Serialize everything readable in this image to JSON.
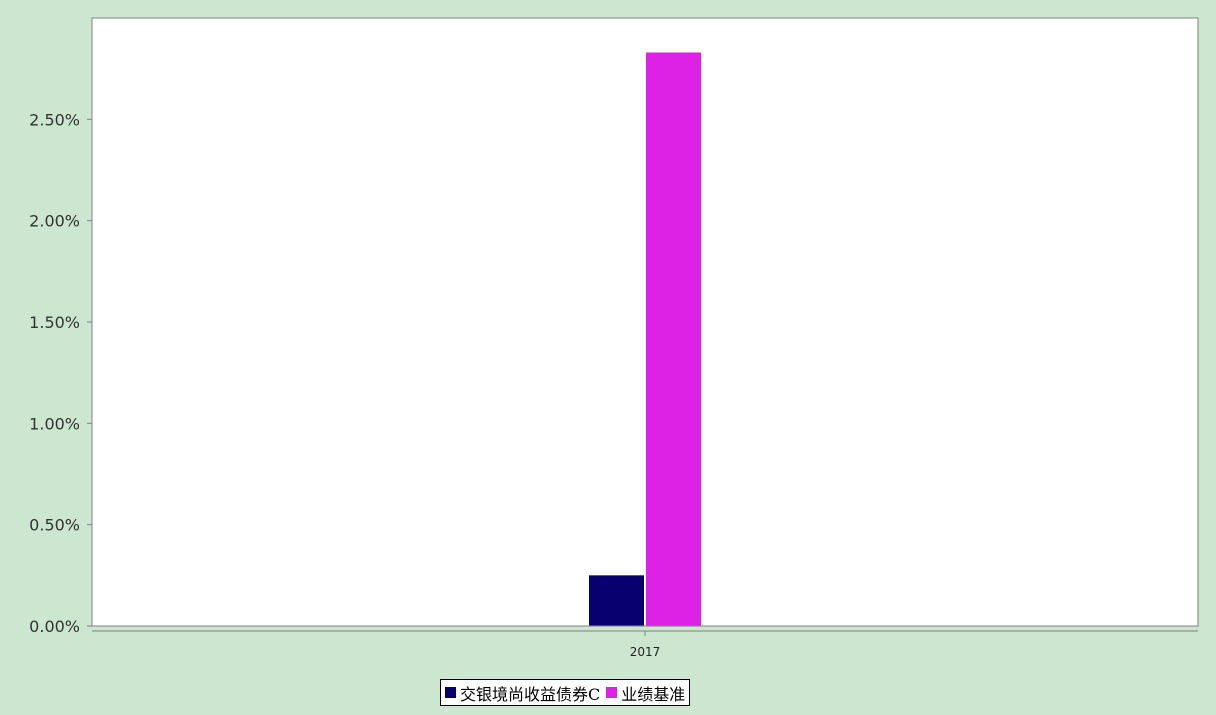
{
  "chart_data": {
    "type": "bar",
    "categories": [
      "2017"
    ],
    "series": [
      {
        "name": "交银境尚收益债券C",
        "values": [
          0.25
        ],
        "color": "#07006e"
      },
      {
        "name": "业绩基准",
        "values": [
          2.83
        ],
        "color": "#dd22e6"
      }
    ],
    "ylim": [
      0,
      3.0
    ],
    "yticks": [
      "0.00%",
      "0.50%",
      "1.00%",
      "1.50%",
      "2.00%",
      "2.50%"
    ],
    "ytick_values": [
      0,
      0.5,
      1.0,
      1.5,
      2.0,
      2.5
    ],
    "y_unit": "%",
    "grid": false,
    "legend_position": "bottom-center",
    "background_color": "#cce6cf",
    "plot_background": "#ffffff"
  }
}
